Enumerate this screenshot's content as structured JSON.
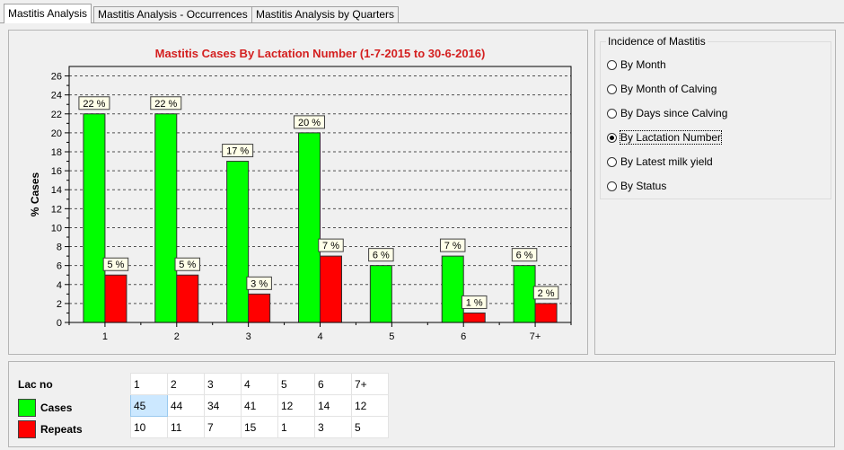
{
  "tabs": [
    {
      "label": "Mastitis Analysis",
      "active": true
    },
    {
      "label": "Mastitis Analysis - Occurrences",
      "active": false
    },
    {
      "label": "Mastitis Analysis by Quarters",
      "active": false
    }
  ],
  "incidence": {
    "title": "Incidence of Mastitis",
    "options": [
      {
        "label": "By Month",
        "checked": false
      },
      {
        "label": "By Month of Calving",
        "checked": false
      },
      {
        "label": "By Days since Calving",
        "checked": false
      },
      {
        "label": "By Lactation Number",
        "checked": true
      },
      {
        "label": "By Latest milk yield",
        "checked": false
      },
      {
        "label": "By Status",
        "checked": false
      }
    ]
  },
  "chart_data": {
    "type": "bar",
    "title": "Mastitis Cases By Lactation Number (1-7-2015 to 30-6-2016)",
    "xlabel": "",
    "ylabel": "% Cases",
    "ylim": [
      0,
      27
    ],
    "yticks": [
      0,
      2,
      4,
      6,
      8,
      10,
      12,
      14,
      16,
      18,
      20,
      22,
      24,
      26
    ],
    "grid": "horizontal-dashed",
    "categories": [
      "1",
      "2",
      "3",
      "4",
      "5",
      "6",
      "7+"
    ],
    "series": [
      {
        "name": "Cases",
        "color": "#00ff00",
        "values": [
          22,
          22,
          17,
          20,
          6,
          7,
          6
        ]
      },
      {
        "name": "Repeats",
        "color": "#ff0000",
        "values": [
          5,
          5,
          3,
          7,
          0,
          1,
          2
        ]
      }
    ],
    "labels": [
      [
        "22 %",
        "22 %",
        "17 %",
        "20 %",
        "6 %",
        "7 %",
        "6 %"
      ],
      [
        "5 %",
        "5 %",
        "3 %",
        "7 %",
        "",
        "1 %",
        "2 %"
      ]
    ],
    "colors": {
      "title": "#d42020",
      "grid": "#505050"
    }
  },
  "table": {
    "legend_title": "Lac no",
    "legend": [
      {
        "label": "Cases",
        "color": "#00ff00"
      },
      {
        "label": "Repeats",
        "color": "#ff0000"
      }
    ],
    "rows": [
      [
        "1",
        "2",
        "3",
        "4",
        "5",
        "6",
        "7+"
      ],
      [
        "45",
        "44",
        "34",
        "41",
        "12",
        "14",
        "12"
      ],
      [
        "10",
        "11",
        "7",
        "15",
        "1",
        "3",
        "5"
      ]
    ]
  }
}
